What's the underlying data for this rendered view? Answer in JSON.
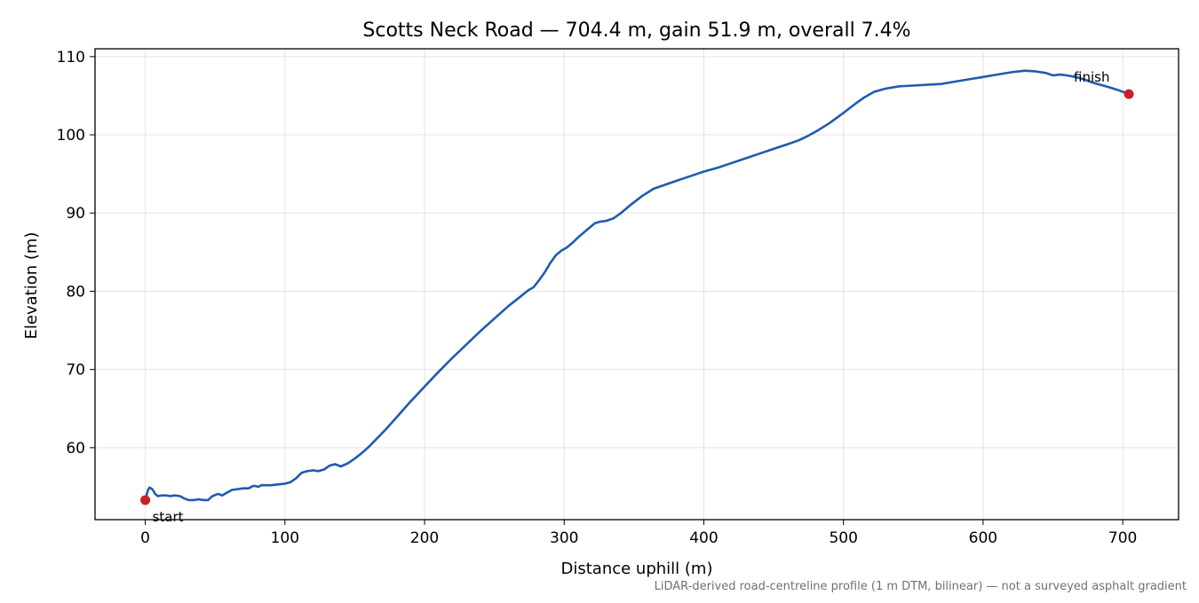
{
  "chart_data": {
    "type": "line",
    "title": "Scotts Neck Road — 704.4 m, gain 51.9 m, overall 7.4%",
    "xlabel": "Distance uphill (m)",
    "ylabel": "Elevation (m)",
    "xlim": [
      -36,
      740
    ],
    "ylim": [
      50.8,
      111.0
    ],
    "xticks": [
      0,
      100,
      200,
      300,
      400,
      500,
      600,
      700
    ],
    "yticks": [
      60,
      70,
      80,
      90,
      100,
      110
    ],
    "grid": true,
    "caption": "LiDAR-derived road-centreline profile (1 m DTM, bilinear) — not a surveyed asphalt gradient",
    "series": [
      {
        "color": "#1f5bb0",
        "x": [
          0,
          2,
          3,
          5,
          7,
          9,
          12,
          15,
          18,
          21,
          25,
          28,
          31,
          35,
          38,
          42,
          45,
          48,
          52,
          55,
          58,
          62,
          66,
          70,
          74,
          77,
          79,
          81,
          83,
          86,
          90,
          95,
          100,
          104,
          108,
          112,
          116,
          120,
          124,
          128,
          132,
          136,
          140,
          145,
          150,
          155,
          160,
          166,
          172,
          180,
          190,
          200,
          210,
          220,
          230,
          240,
          250,
          260,
          270,
          274,
          278,
          282,
          286,
          290,
          294,
          298,
          302,
          306,
          310,
          314,
          318,
          322,
          326,
          330,
          335,
          340,
          348,
          356,
          364,
          372,
          380,
          390,
          400,
          410,
          420,
          430,
          440,
          450,
          460,
          468,
          475,
          482,
          490,
          500,
          508,
          515,
          522,
          530,
          540,
          550,
          560,
          570,
          580,
          590,
          600,
          610,
          620,
          630,
          638,
          645,
          650,
          655,
          660,
          666,
          672,
          678,
          684,
          690,
          697,
          704.4
        ],
        "y": [
          53.3,
          54.6,
          54.9,
          54.7,
          54.1,
          53.8,
          53.9,
          53.9,
          53.8,
          53.9,
          53.8,
          53.5,
          53.3,
          53.3,
          53.4,
          53.3,
          53.3,
          53.8,
          54.1,
          53.9,
          54.2,
          54.6,
          54.7,
          54.8,
          54.8,
          55.1,
          55.1,
          55.0,
          55.2,
          55.2,
          55.2,
          55.3,
          55.4,
          55.6,
          56.1,
          56.8,
          57.0,
          57.1,
          57.0,
          57.2,
          57.7,
          57.9,
          57.6,
          58.0,
          58.6,
          59.3,
          60.1,
          61.2,
          62.3,
          63.9,
          65.9,
          67.8,
          69.7,
          71.5,
          73.2,
          74.9,
          76.5,
          78.1,
          79.5,
          80.1,
          80.5,
          81.4,
          82.4,
          83.6,
          84.6,
          85.2,
          85.6,
          86.2,
          86.9,
          87.5,
          88.1,
          88.7,
          88.9,
          89.0,
          89.3,
          89.9,
          91.1,
          92.2,
          93.1,
          93.6,
          94.1,
          94.7,
          95.3,
          95.8,
          96.4,
          97.0,
          97.6,
          98.2,
          98.8,
          99.3,
          99.9,
          100.6,
          101.5,
          102.8,
          103.9,
          104.8,
          105.5,
          105.9,
          106.2,
          106.3,
          106.4,
          106.5,
          106.8,
          107.1,
          107.4,
          107.7,
          108.0,
          108.2,
          108.1,
          107.9,
          107.6,
          107.7,
          107.6,
          107.4,
          107.1,
          106.7,
          106.4,
          106.1,
          105.7,
          105.2
        ]
      }
    ],
    "markers": [
      {
        "x": 0,
        "y": 53.3,
        "label": "start",
        "color": "#c8202a"
      },
      {
        "x": 704.4,
        "y": 105.2,
        "label": "finish",
        "color": "#c8202a"
      }
    ]
  }
}
